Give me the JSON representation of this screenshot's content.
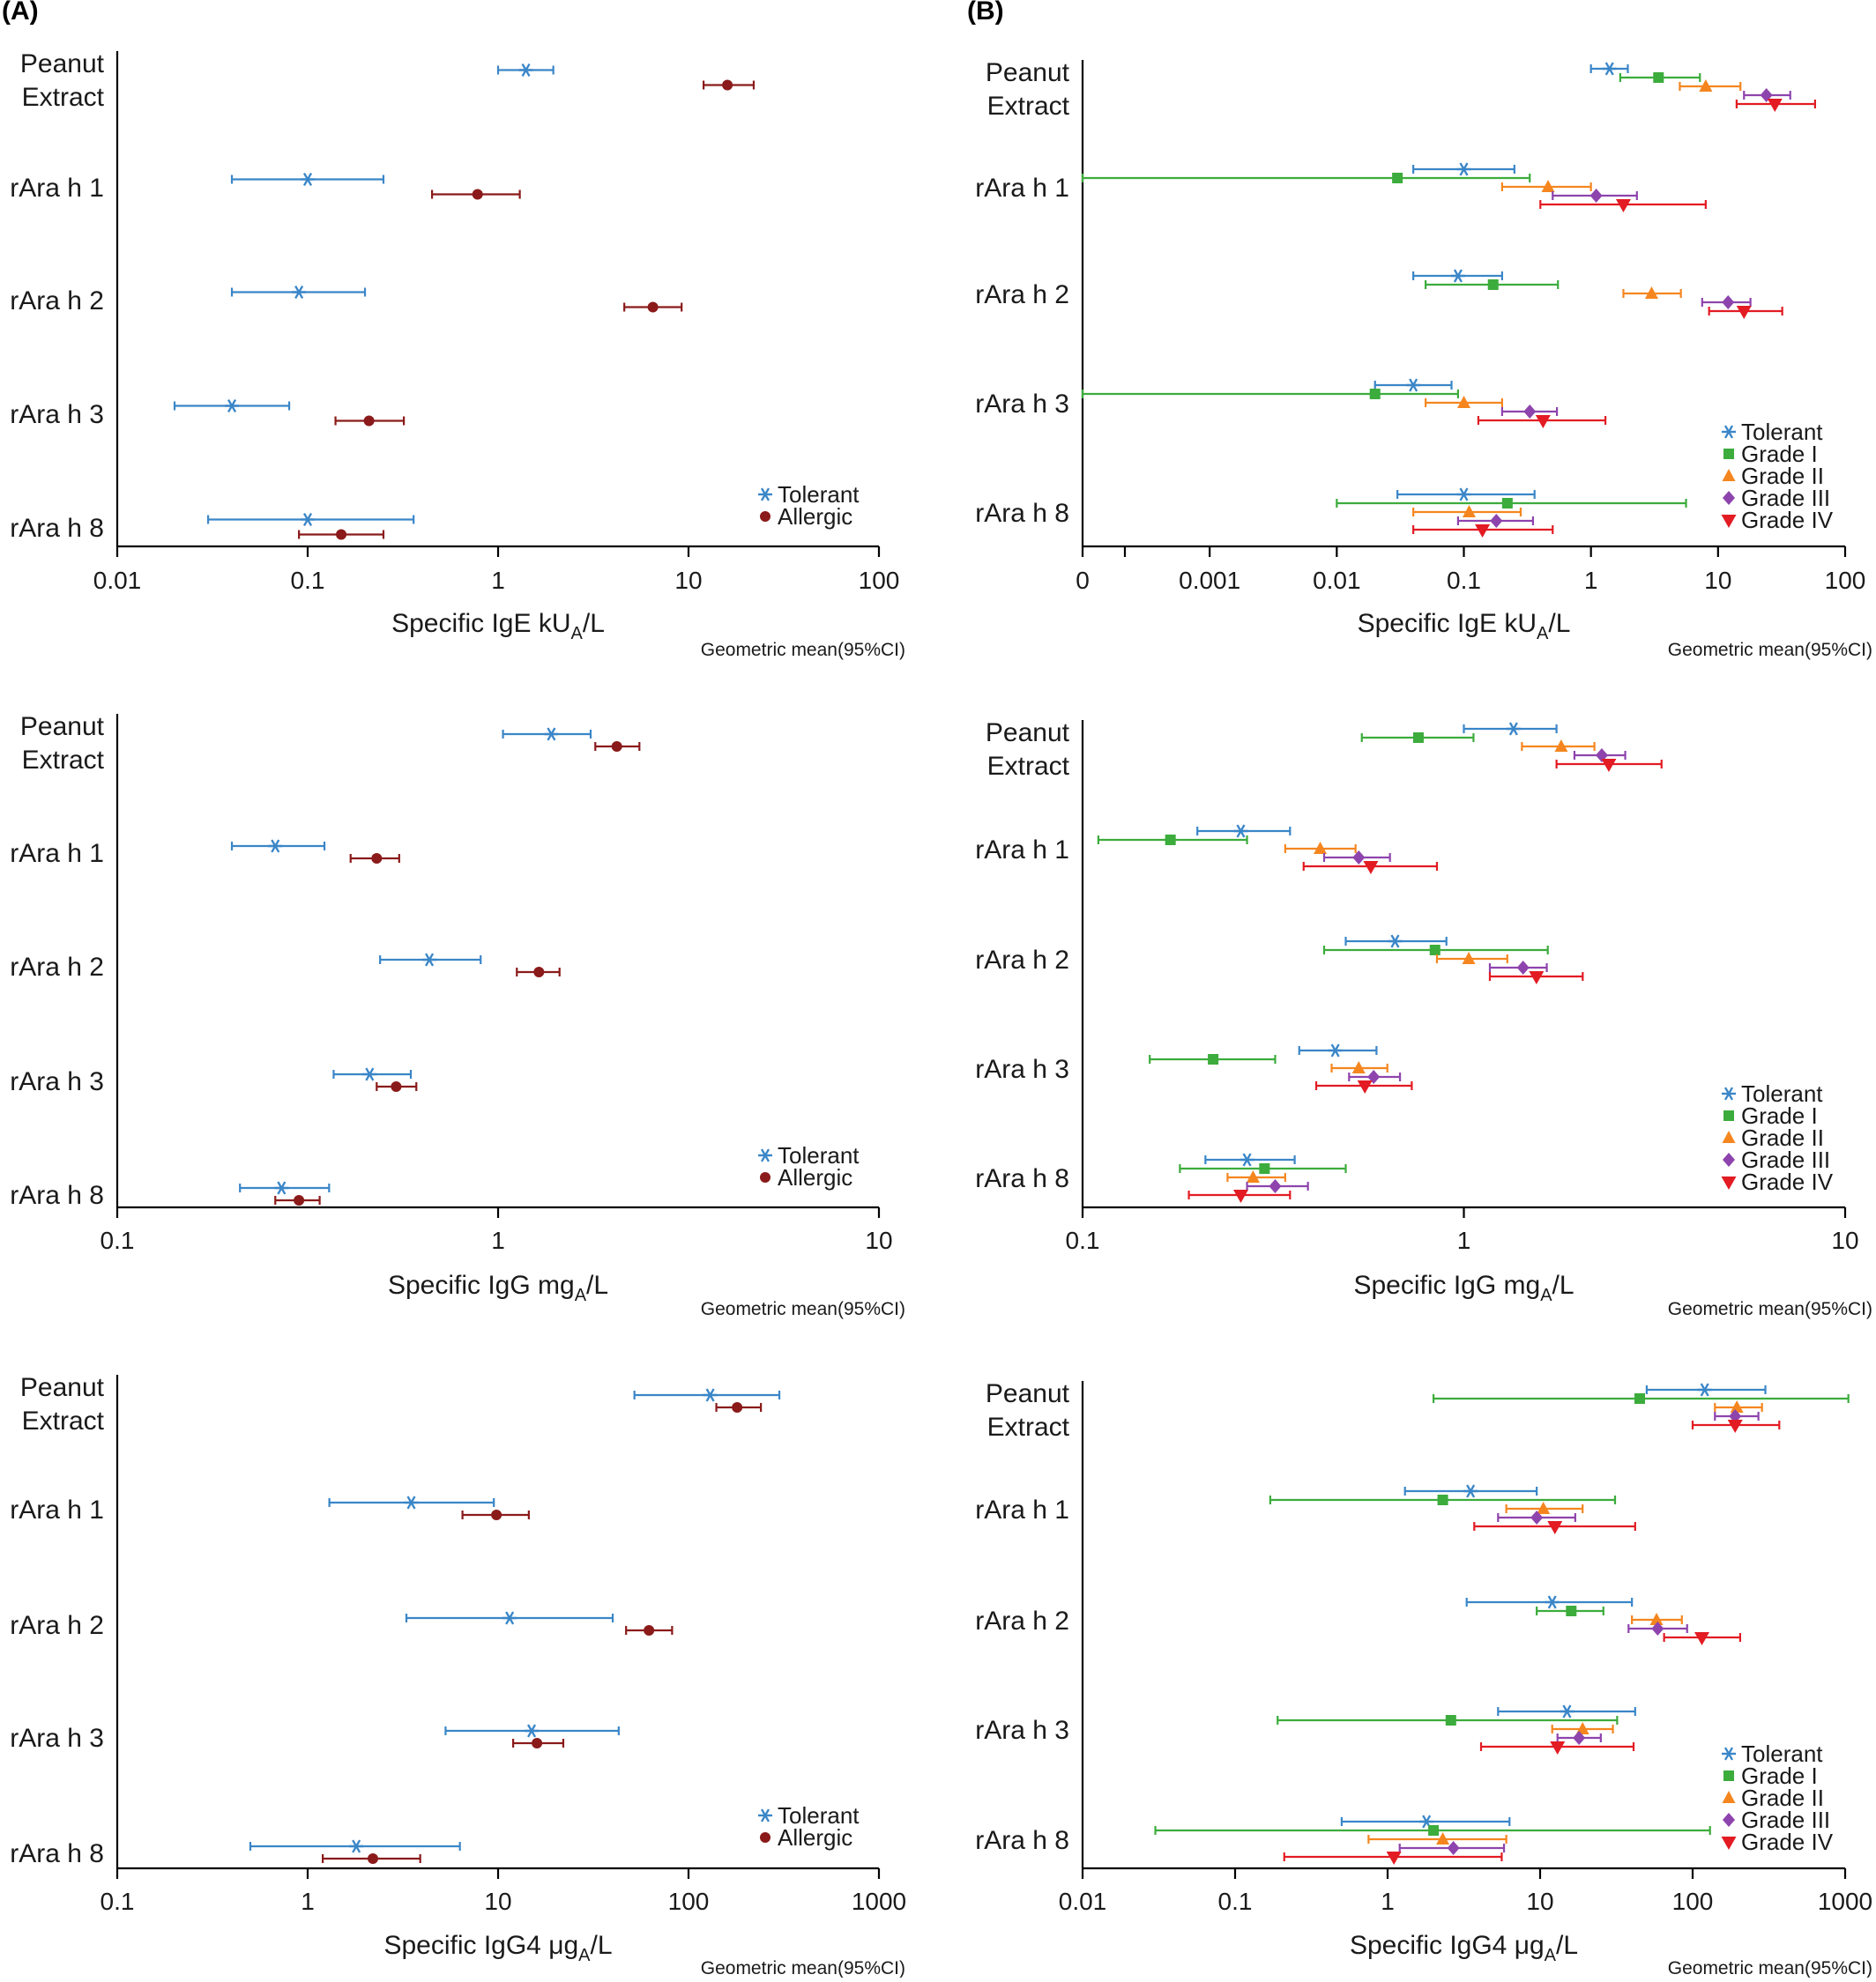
{
  "panel_labels": {
    "a": "(A)",
    "b": "(B)"
  },
  "colors": {
    "Tolerant": "#3a86c8",
    "Allergic": "#8b1a1a",
    "Grade I": "#3cac3c",
    "Grade II": "#f5861f",
    "Grade III": "#8e44ad",
    "Grade IV": "#e31b23"
  },
  "chart_data": [
    {
      "id": "A-IgE",
      "type": "scatter",
      "error_bars": "95% CI",
      "xscale": "log",
      "xlabel_main": "Specific IgE kU",
      "xlabel_sub": "A",
      "xlabel_tail": "/L",
      "note": "Geometric mean(95%CI)",
      "categories": [
        "Peanut Extract",
        "rAra h 1",
        "rAra h 2",
        "rAra h 3",
        "rAra h 8"
      ],
      "category_labels": [
        [
          "Peanut",
          "Extract"
        ],
        [
          "rAra h 1"
        ],
        [
          "rAra h 2"
        ],
        [
          "rAra h 3"
        ],
        [
          "rAra h 8"
        ]
      ],
      "xlim": [
        0.01,
        100
      ],
      "xticks": [
        0.01,
        0.1,
        1,
        10,
        100
      ],
      "xtick_labels": [
        "0.01",
        "0.1",
        "1",
        "10",
        "100"
      ],
      "legend_position": "bottom-right",
      "series": [
        {
          "name": "Tolerant",
          "marker": "star",
          "values": [
            1.4,
            0.1,
            0.09,
            0.04,
            0.1
          ],
          "ci_low": [
            1.0,
            0.04,
            0.04,
            0.02,
            0.03
          ],
          "ci_high": [
            1.95,
            0.25,
            0.2,
            0.08,
            0.36
          ]
        },
        {
          "name": "Allergic",
          "marker": "circle",
          "values": [
            16,
            0.78,
            6.5,
            0.21,
            0.15
          ],
          "ci_low": [
            12,
            0.45,
            4.6,
            0.14,
            0.09
          ],
          "ci_high": [
            22,
            1.3,
            9.2,
            0.32,
            0.25
          ]
        }
      ]
    },
    {
      "id": "B-IgE",
      "type": "scatter",
      "error_bars": "95% CI",
      "xscale": "log",
      "xlabel_main": "Specific IgE kU",
      "xlabel_sub": "A",
      "xlabel_tail": "/L",
      "note": "Geometric mean(95%CI)",
      "categories": [
        "Peanut Extract",
        "rAra h 1",
        "rAra h 2",
        "rAra h 3",
        "rAra h 8"
      ],
      "category_labels": [
        [
          "Peanut",
          "Extract"
        ],
        [
          "rAra h 1"
        ],
        [
          "rAra h 2"
        ],
        [
          "rAra h 3"
        ],
        [
          "rAra h 8"
        ]
      ],
      "xlim": [
        0.0001,
        100
      ],
      "xticks": [
        0.0001,
        0.001,
        0.01,
        0.1,
        1,
        10,
        100
      ],
      "xtick_labels": [
        "0",
        "0.001",
        "0.01",
        "0.1",
        "1",
        "10",
        "100"
      ],
      "axis_break": true,
      "legend_position": "bottom-right",
      "series": [
        {
          "name": "Tolerant",
          "marker": "star",
          "values": [
            1.4,
            0.1,
            0.09,
            0.04,
            0.1
          ],
          "ci_low": [
            1.0,
            0.04,
            0.04,
            0.02,
            0.03
          ],
          "ci_high": [
            1.95,
            0.25,
            0.2,
            0.08,
            0.36
          ]
        },
        {
          "name": "Grade I",
          "marker": "square",
          "values": [
            3.4,
            0.03,
            0.17,
            0.02,
            0.22
          ],
          "ci_low": [
            1.7,
            0.0001,
            0.05,
            0.0001,
            0.01
          ],
          "ci_high": [
            7.2,
            0.33,
            0.55,
            0.09,
            5.6
          ]
        },
        {
          "name": "Grade II",
          "marker": "triangle-up",
          "values": [
            8,
            0.46,
            3.0,
            0.1,
            0.11
          ],
          "ci_low": [
            5,
            0.2,
            1.8,
            0.05,
            0.04
          ],
          "ci_high": [
            15,
            1.0,
            5.1,
            0.2,
            0.28
          ]
        },
        {
          "name": "Grade III",
          "marker": "diamond",
          "values": [
            24,
            1.1,
            12,
            0.33,
            0.18
          ],
          "ci_low": [
            16,
            0.5,
            7.5,
            0.2,
            0.09
          ],
          "ci_high": [
            37,
            2.3,
            18,
            0.54,
            0.35
          ]
        },
        {
          "name": "Grade IV",
          "marker": "triangle-down",
          "values": [
            28,
            1.8,
            16,
            0.42,
            0.14
          ],
          "ci_low": [
            14,
            0.4,
            8.5,
            0.13,
            0.04
          ],
          "ci_high": [
            58,
            8,
            32,
            1.3,
            0.5
          ]
        }
      ]
    },
    {
      "id": "A-IgG",
      "type": "scatter",
      "error_bars": "95% CI",
      "xscale": "log",
      "xlabel_main": "Specific IgG mg",
      "xlabel_sub": "A",
      "xlabel_tail": "/L",
      "note": "Geometric mean(95%CI)",
      "categories": [
        "Peanut Extract",
        "rAra h 1",
        "rAra h 2",
        "rAra h 3",
        "rAra h 8"
      ],
      "category_labels": [
        [
          "Peanut",
          "Extract"
        ],
        [
          "rAra h 1"
        ],
        [
          "rAra h 2"
        ],
        [
          "rAra h 3"
        ],
        [
          "rAra h 8"
        ]
      ],
      "xlim": [
        0.1,
        10
      ],
      "xticks": [
        0.1,
        1,
        10
      ],
      "xtick_labels": [
        "0.1",
        "1",
        "10"
      ],
      "legend_position": "bottom-right",
      "series": [
        {
          "name": "Tolerant",
          "marker": "star",
          "values": [
            1.38,
            0.26,
            0.66,
            0.46,
            0.27
          ],
          "ci_low": [
            1.03,
            0.2,
            0.49,
            0.37,
            0.21
          ],
          "ci_high": [
            1.75,
            0.35,
            0.9,
            0.59,
            0.36
          ]
        },
        {
          "name": "Allergic",
          "marker": "circle",
          "values": [
            2.05,
            0.48,
            1.28,
            0.54,
            0.3
          ],
          "ci_low": [
            1.8,
            0.41,
            1.12,
            0.48,
            0.26
          ],
          "ci_high": [
            2.35,
            0.55,
            1.45,
            0.61,
            0.34
          ]
        }
      ]
    },
    {
      "id": "B-IgG",
      "type": "scatter",
      "error_bars": "95% CI",
      "xscale": "log",
      "xlabel_main": "Specific IgG mg",
      "xlabel_sub": "A",
      "xlabel_tail": "/L",
      "note": "Geometric mean(95%CI)",
      "categories": [
        "Peanut Extract",
        "rAra h 1",
        "rAra h 2",
        "rAra h 3",
        "rAra h 8"
      ],
      "category_labels": [
        [
          "Peanut",
          "Extract"
        ],
        [
          "rAra h 1"
        ],
        [
          "rAra h 2"
        ],
        [
          "rAra h 3"
        ],
        [
          "rAra h 8"
        ]
      ],
      "xlim": [
        0.1,
        10
      ],
      "xticks": [
        0.1,
        1,
        10
      ],
      "xtick_labels": [
        "0.1",
        "1",
        "10"
      ],
      "legend_position": "bottom-right",
      "series": [
        {
          "name": "Tolerant",
          "marker": "star",
          "values": [
            1.35,
            0.26,
            0.66,
            0.46,
            0.27
          ],
          "ci_low": [
            1.0,
            0.2,
            0.49,
            0.37,
            0.21
          ],
          "ci_high": [
            1.75,
            0.35,
            0.9,
            0.59,
            0.36
          ]
        },
        {
          "name": "Grade I",
          "marker": "square",
          "values": [
            0.76,
            0.17,
            0.84,
            0.22,
            0.3
          ],
          "ci_low": [
            0.54,
            0.11,
            0.43,
            0.15,
            0.18
          ],
          "ci_high": [
            1.06,
            0.27,
            1.66,
            0.32,
            0.49
          ]
        },
        {
          "name": "Grade II",
          "marker": "triangle-up",
          "values": [
            1.8,
            0.42,
            1.03,
            0.53,
            0.28
          ],
          "ci_low": [
            1.42,
            0.34,
            0.85,
            0.45,
            0.24
          ],
          "ci_high": [
            2.2,
            0.52,
            1.3,
            0.63,
            0.34
          ]
        },
        {
          "name": "Grade III",
          "marker": "diamond",
          "values": [
            2.3,
            0.53,
            1.43,
            0.58,
            0.32
          ],
          "ci_low": [
            1.95,
            0.43,
            1.17,
            0.5,
            0.27
          ],
          "ci_high": [
            2.65,
            0.64,
            1.65,
            0.68,
            0.39
          ]
        },
        {
          "name": "Grade IV",
          "marker": "triangle-down",
          "values": [
            2.4,
            0.57,
            1.55,
            0.55,
            0.26
          ],
          "ci_low": [
            1.75,
            0.38,
            1.17,
            0.41,
            0.19
          ],
          "ci_high": [
            3.3,
            0.85,
            2.05,
            0.73,
            0.35
          ]
        }
      ]
    },
    {
      "id": "A-IgG4",
      "type": "scatter",
      "error_bars": "95% CI",
      "xscale": "log",
      "xlabel_main": "Specific IgG4 μg",
      "xlabel_sub": "A",
      "xlabel_tail": "/L",
      "note": "Geometric mean(95%CI)",
      "categories": [
        "Peanut Extract",
        "rAra h 1",
        "rAra h 2",
        "rAra h 3",
        "rAra h 8"
      ],
      "category_labels": [
        [
          "Peanut",
          "Extract"
        ],
        [
          "rAra h 1"
        ],
        [
          "rAra h 2"
        ],
        [
          "rAra h 3"
        ],
        [
          "rAra h 8"
        ]
      ],
      "xlim": [
        0.1,
        1000
      ],
      "xticks": [
        0.1,
        1,
        10,
        100,
        1000
      ],
      "xtick_labels": [
        "0.1",
        "1",
        "10",
        "100",
        "1000"
      ],
      "legend_position": "bottom-right",
      "series": [
        {
          "name": "Tolerant",
          "marker": "star",
          "values": [
            130,
            3.5,
            11.5,
            15,
            1.8
          ],
          "ci_low": [
            52,
            1.3,
            3.3,
            5.3,
            0.5
          ],
          "ci_high": [
            300,
            9.5,
            40,
            43,
            6.3
          ]
        },
        {
          "name": "Allergic",
          "marker": "circle",
          "values": [
            180,
            9.8,
            62,
            16,
            2.2
          ],
          "ci_low": [
            140,
            6.5,
            47,
            12,
            1.2
          ],
          "ci_high": [
            240,
            14.5,
            82,
            22,
            3.9
          ]
        }
      ]
    },
    {
      "id": "B-IgG4",
      "type": "scatter",
      "error_bars": "95% CI",
      "xscale": "log",
      "xlabel_main": "Specific IgG4 μg",
      "xlabel_sub": "A",
      "xlabel_tail": "/L",
      "note": "Geometric mean(95%CI)",
      "categories": [
        "Peanut Extract",
        "rAra h 1",
        "rAra h 2",
        "rAra h 3",
        "rAra h 8"
      ],
      "category_labels": [
        [
          "Peanut",
          "Extract"
        ],
        [
          "rAra h 1"
        ],
        [
          "rAra h 2"
        ],
        [
          "rAra h 3"
        ],
        [
          "rAra h 8"
        ]
      ],
      "xlim": [
        0.01,
        1000
      ],
      "xticks": [
        0.01,
        0.1,
        1,
        10,
        100,
        1000
      ],
      "xtick_labels": [
        "0.01",
        "0.1",
        "1",
        "10",
        "100",
        "1000"
      ],
      "legend_position": "bottom-right",
      "series": [
        {
          "name": "Tolerant",
          "marker": "star",
          "values": [
            120,
            3.5,
            12,
            15,
            1.8
          ],
          "ci_low": [
            50,
            1.3,
            3.3,
            5.3,
            0.5
          ],
          "ci_high": [
            300,
            9.5,
            40,
            42,
            6.3
          ]
        },
        {
          "name": "Grade I",
          "marker": "square",
          "values": [
            45,
            2.3,
            16,
            2.6,
            2.0
          ],
          "ci_low": [
            2,
            0.17,
            9.5,
            0.19,
            0.03
          ],
          "ci_high": [
            1050,
            31,
            26,
            32,
            130
          ]
        },
        {
          "name": "Grade II",
          "marker": "triangle-up",
          "values": [
            195,
            10.5,
            58,
            19,
            2.3
          ],
          "ci_low": [
            140,
            6,
            40,
            12,
            0.75
          ],
          "ci_high": [
            285,
            19,
            85,
            30,
            6
          ]
        },
        {
          "name": "Grade III",
          "marker": "diamond",
          "values": [
            190,
            9.5,
            59,
            18,
            2.7
          ],
          "ci_low": [
            140,
            5.3,
            38,
            13,
            1.2
          ],
          "ci_high": [
            270,
            17,
            92,
            25,
            5.8
          ]
        },
        {
          "name": "Grade IV",
          "marker": "triangle-down",
          "values": [
            190,
            12.5,
            115,
            13,
            1.1
          ],
          "ci_low": [
            100,
            3.7,
            65,
            4.1,
            0.21
          ],
          "ci_high": [
            370,
            42,
            205,
            41,
            5.6
          ]
        }
      ]
    }
  ]
}
